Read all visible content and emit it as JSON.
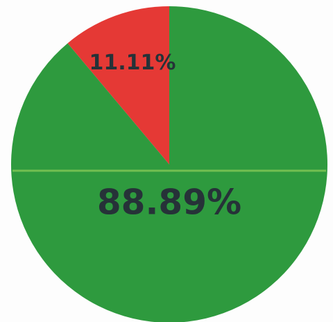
{
  "chart_data": {
    "type": "pie",
    "title": "",
    "slices": [
      {
        "value": 11.11,
        "label": "11.11%",
        "color": "#e53935"
      },
      {
        "value": 88.89,
        "label": "88.89%",
        "color": "#2e9a3e"
      }
    ],
    "start": "top",
    "direction": "counter-clockwise"
  }
}
